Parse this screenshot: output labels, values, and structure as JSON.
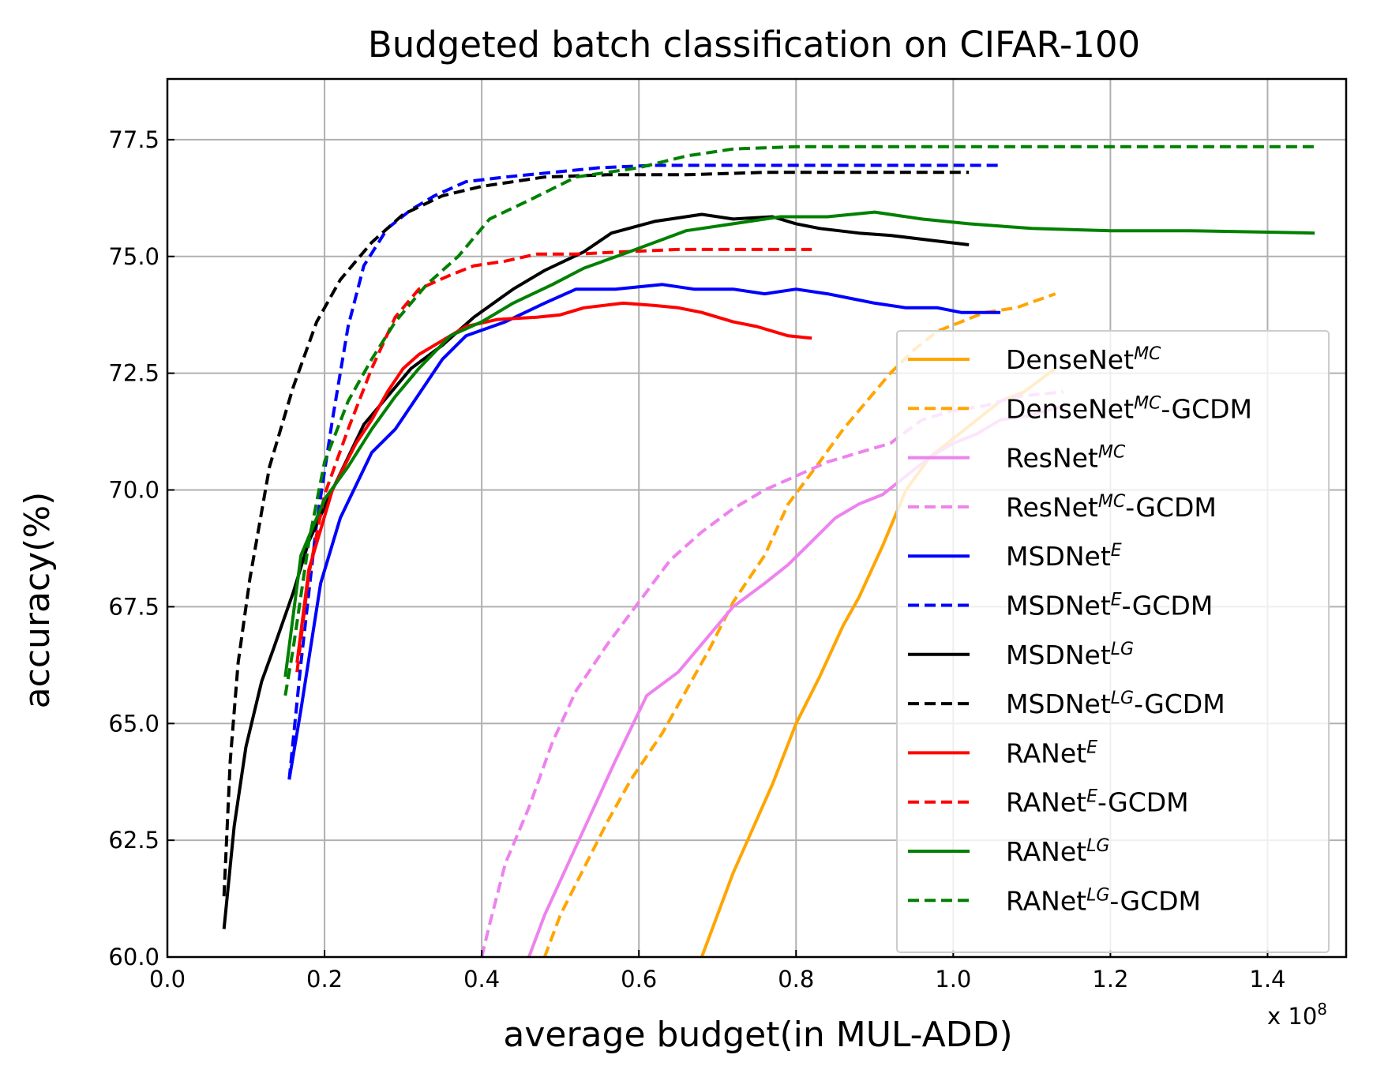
{
  "chart_data": {
    "type": "line",
    "title": "Budgeted batch classification on CIFAR-100",
    "xlabel": "average budget(in MUL-ADD)",
    "ylabel": "accuracy(%)",
    "x_multiplier_label": "x 10",
    "x_multiplier_exponent": "8",
    "xlim": [
      0.0,
      1.5
    ],
    "ylim": [
      60.0,
      78.8
    ],
    "x_ticks": [
      "0.0",
      "0.2",
      "0.4",
      "0.6",
      "0.8",
      "1.0",
      "1.2",
      "1.4"
    ],
    "y_ticks": [
      "60.0",
      "62.5",
      "65.0",
      "67.5",
      "70.0",
      "72.5",
      "75.0",
      "77.5"
    ],
    "grid": true,
    "legend_position": "lower-right",
    "series": [
      {
        "name": "DenseNet",
        "sup": "MC",
        "suffix": "",
        "color": "#ffa500",
        "dash": "solid",
        "x": [
          0.68,
          0.72,
          0.77,
          0.8,
          0.83,
          0.86,
          0.88,
          0.91,
          0.94,
          0.97,
          1.0,
          1.03,
          1.06,
          1.09,
          1.13
        ],
        "y": [
          60.0,
          61.8,
          63.7,
          65.0,
          66.0,
          67.1,
          67.7,
          68.8,
          70.0,
          70.7,
          71.1,
          71.5,
          71.9,
          72.1,
          72.6
        ]
      },
      {
        "name": "DenseNet",
        "sup": "MC",
        "suffix": "-GCDM",
        "color": "#ffa500",
        "dash": "dashed",
        "x": [
          0.48,
          0.5,
          0.53,
          0.56,
          0.59,
          0.63,
          0.66,
          0.69,
          0.72,
          0.76,
          0.79,
          0.83,
          0.86,
          0.89,
          0.92,
          0.95,
          0.98,
          1.01,
          1.04,
          1.08,
          1.13
        ],
        "y": [
          60.0,
          60.9,
          61.9,
          62.9,
          63.8,
          64.8,
          65.7,
          66.6,
          67.6,
          68.6,
          69.7,
          70.6,
          71.3,
          71.9,
          72.5,
          73.0,
          73.4,
          73.6,
          73.8,
          73.9,
          74.2
        ]
      },
      {
        "name": "ResNet",
        "sup": "MC",
        "suffix": "",
        "color": "#ee82ee",
        "dash": "solid",
        "x": [
          0.46,
          0.48,
          0.51,
          0.54,
          0.57,
          0.61,
          0.65,
          0.69,
          0.72,
          0.76,
          0.79,
          0.82,
          0.85,
          0.88,
          0.91,
          0.94,
          0.97,
          1.0,
          1.03,
          1.06,
          1.1,
          1.14
        ],
        "y": [
          60.0,
          60.9,
          62.0,
          63.1,
          64.2,
          65.6,
          66.1,
          66.9,
          67.5,
          68.0,
          68.4,
          68.9,
          69.4,
          69.7,
          69.9,
          70.3,
          70.7,
          71.0,
          71.2,
          71.5,
          71.6,
          71.8
        ]
      },
      {
        "name": "ResNet",
        "sup": "MC",
        "suffix": "-GCDM",
        "color": "#ee82ee",
        "dash": "dashed",
        "x": [
          0.4,
          0.41,
          0.43,
          0.46,
          0.49,
          0.52,
          0.56,
          0.6,
          0.64,
          0.68,
          0.72,
          0.76,
          0.8,
          0.84,
          0.88,
          0.92,
          0.96,
          1.0,
          1.04,
          1.08,
          1.14
        ],
        "y": [
          60.0,
          60.7,
          62.0,
          63.2,
          64.6,
          65.7,
          66.7,
          67.6,
          68.5,
          69.1,
          69.6,
          70.0,
          70.3,
          70.6,
          70.8,
          71.0,
          71.5,
          71.7,
          71.8,
          72.0,
          72.1
        ]
      },
      {
        "name": "MSDNet",
        "sup": "E",
        "suffix": "",
        "color": "#0000ff",
        "dash": "solid",
        "x": [
          0.155,
          0.17,
          0.195,
          0.22,
          0.24,
          0.26,
          0.29,
          0.31,
          0.35,
          0.38,
          0.43,
          0.48,
          0.52,
          0.57,
          0.63,
          0.67,
          0.72,
          0.76,
          0.8,
          0.84,
          0.87,
          0.9,
          0.94,
          0.98,
          1.01,
          1.04,
          1.06
        ],
        "y": [
          63.8,
          65.3,
          68.0,
          69.4,
          70.1,
          70.8,
          71.3,
          71.8,
          72.8,
          73.3,
          73.6,
          74.0,
          74.3,
          74.3,
          74.4,
          74.3,
          74.3,
          74.2,
          74.3,
          74.2,
          74.1,
          74.0,
          73.9,
          73.9,
          73.8,
          73.8,
          73.8
        ]
      },
      {
        "name": "MSDNet",
        "sup": "E",
        "suffix": "-GCDM",
        "color": "#0000ff",
        "dash": "dashed",
        "x": [
          0.155,
          0.17,
          0.19,
          0.21,
          0.23,
          0.25,
          0.28,
          0.31,
          0.34,
          0.38,
          0.43,
          0.49,
          0.55,
          0.62,
          0.72,
          0.82,
          0.92,
          1.0,
          1.06
        ],
        "y": [
          63.8,
          66.3,
          69.3,
          71.5,
          73.5,
          74.8,
          75.6,
          76.0,
          76.3,
          76.6,
          76.7,
          76.8,
          76.9,
          76.95,
          76.95,
          76.95,
          76.95,
          76.95,
          76.95
        ]
      },
      {
        "name": "MSDNet",
        "sup": "LG",
        "suffix": "",
        "color": "#000000",
        "dash": "solid",
        "x": [
          0.072,
          0.085,
          0.1,
          0.12,
          0.135,
          0.16,
          0.18,
          0.21,
          0.25,
          0.28,
          0.31,
          0.35,
          0.39,
          0.44,
          0.48,
          0.53,
          0.565,
          0.62,
          0.68,
          0.72,
          0.77,
          0.8,
          0.83,
          0.88,
          0.92,
          0.97,
          1.02
        ],
        "y": [
          60.6,
          62.8,
          64.5,
          65.9,
          66.6,
          67.8,
          68.9,
          70.0,
          71.4,
          72.0,
          72.6,
          73.1,
          73.7,
          74.3,
          74.7,
          75.1,
          75.5,
          75.75,
          75.9,
          75.8,
          75.85,
          75.7,
          75.6,
          75.5,
          75.45,
          75.35,
          75.25
        ]
      },
      {
        "name": "MSDNet",
        "sup": "LG",
        "suffix": "-GCDM",
        "color": "#000000",
        "dash": "dashed",
        "x": [
          0.072,
          0.08,
          0.09,
          0.105,
          0.13,
          0.16,
          0.19,
          0.22,
          0.26,
          0.3,
          0.35,
          0.4,
          0.48,
          0.56,
          0.66,
          0.76,
          0.86,
          0.96,
          1.02
        ],
        "y": [
          61.3,
          64.2,
          66.3,
          68.1,
          70.5,
          72.2,
          73.6,
          74.5,
          75.3,
          75.9,
          76.3,
          76.5,
          76.7,
          76.75,
          76.75,
          76.8,
          76.8,
          76.8,
          76.8
        ]
      },
      {
        "name": "RANet",
        "sup": "E",
        "suffix": "",
        "color": "#ff0000",
        "dash": "solid",
        "x": [
          0.165,
          0.18,
          0.21,
          0.24,
          0.26,
          0.28,
          0.3,
          0.32,
          0.35,
          0.38,
          0.42,
          0.47,
          0.5,
          0.53,
          0.58,
          0.62,
          0.65,
          0.68,
          0.72,
          0.75,
          0.79,
          0.82
        ],
        "y": [
          66.3,
          68.3,
          70.0,
          71.0,
          71.5,
          72.1,
          72.6,
          72.9,
          73.2,
          73.5,
          73.65,
          73.7,
          73.75,
          73.9,
          74.0,
          73.95,
          73.9,
          73.8,
          73.6,
          73.5,
          73.3,
          73.25
        ]
      },
      {
        "name": "RANet",
        "sup": "E",
        "suffix": "-GCDM",
        "color": "#ff0000",
        "dash": "dashed",
        "x": [
          0.165,
          0.18,
          0.2,
          0.23,
          0.26,
          0.29,
          0.32,
          0.36,
          0.39,
          0.43,
          0.47,
          0.52,
          0.58,
          0.65,
          0.72,
          0.82
        ],
        "y": [
          66.1,
          68.2,
          69.9,
          71.3,
          72.6,
          73.7,
          74.3,
          74.6,
          74.8,
          74.9,
          75.05,
          75.05,
          75.1,
          75.15,
          75.15,
          75.15
        ]
      },
      {
        "name": "RANet",
        "sup": "LG",
        "suffix": "",
        "color": "#008000",
        "dash": "solid",
        "x": [
          0.15,
          0.17,
          0.2,
          0.23,
          0.26,
          0.29,
          0.32,
          0.36,
          0.4,
          0.44,
          0.49,
          0.53,
          0.58,
          0.62,
          0.66,
          0.72,
          0.78,
          0.84,
          0.9,
          0.96,
          1.02,
          1.1,
          1.2,
          1.3,
          1.4,
          1.46
        ],
        "y": [
          66.0,
          68.6,
          69.8,
          70.5,
          71.3,
          72.0,
          72.6,
          73.3,
          73.6,
          74.0,
          74.4,
          74.75,
          75.05,
          75.3,
          75.55,
          75.7,
          75.85,
          75.85,
          75.95,
          75.8,
          75.7,
          75.6,
          75.55,
          75.55,
          75.52,
          75.5
        ]
      },
      {
        "name": "RANet",
        "sup": "LG",
        "suffix": "-GCDM",
        "color": "#008000",
        "dash": "dashed",
        "x": [
          0.15,
          0.16,
          0.18,
          0.2,
          0.23,
          0.26,
          0.29,
          0.33,
          0.37,
          0.41,
          0.46,
          0.52,
          0.6,
          0.66,
          0.72,
          0.8,
          0.9,
          1.0,
          1.1,
          1.2,
          1.3,
          1.46
        ],
        "y": [
          65.6,
          66.6,
          68.9,
          70.6,
          71.9,
          72.8,
          73.6,
          74.4,
          75.0,
          75.8,
          76.2,
          76.7,
          76.9,
          77.15,
          77.3,
          77.35,
          77.35,
          77.35,
          77.35,
          77.35,
          77.35,
          77.35
        ]
      }
    ]
  }
}
